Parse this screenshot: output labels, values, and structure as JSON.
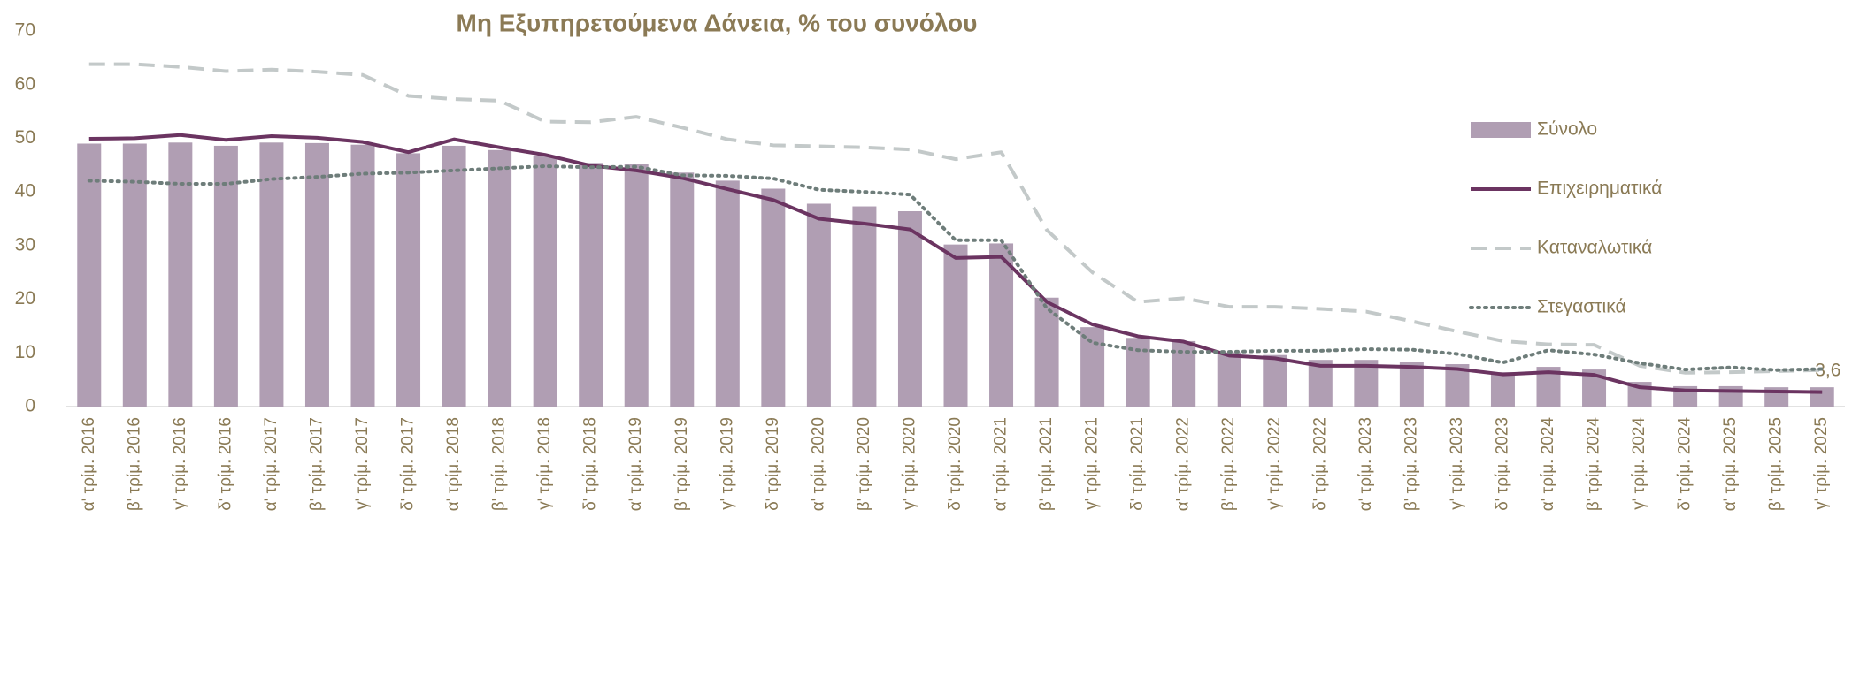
{
  "chart_data": {
    "type": "bar_line",
    "title": "Μη Εξυπηρετούμενα Δάνεια, % του συνόλου",
    "categories": [
      "α' τρίμ. 2016",
      "β' τρίμ. 2016",
      "γ' τρίμ. 2016",
      "δ' τρίμ. 2016",
      "α' τρίμ. 2017",
      "β' τρίμ. 2017",
      "γ' τρίμ. 2017",
      "δ' τρίμ. 2017",
      "α' τρίμ. 2018",
      "β' τρίμ. 2018",
      "γ' τρίμ. 2018",
      "δ' τρίμ. 2018",
      "α' τρίμ. 2019",
      "β' τρίμ. 2019",
      "γ' τρίμ. 2019",
      "δ' τρίμ. 2019",
      "α' τρίμ. 2020",
      "β' τρίμ. 2020",
      "γ' τρίμ. 2020",
      "δ' τρίμ. 2020",
      "α' τρίμ. 2021",
      "β' τρίμ. 2021",
      "γ' τρίμ. 2021",
      "δ' τρίμ. 2021",
      "α' τρίμ. 2022",
      "β' τρίμ. 2022",
      "γ' τρίμ. 2022",
      "δ' τρίμ. 2022",
      "α' τρίμ. 2023",
      "β' τρίμ. 2023",
      "γ' τρίμ. 2023",
      "δ' τρίμ. 2023",
      "α' τρίμ. 2024",
      "β' τρίμ. 2024",
      "γ' τρίμ. 2024",
      "δ' τρίμ. 2024",
      "α' τρίμ. 2025",
      "β' τρίμ. 2025",
      "γ' τρίμ. 2025"
    ],
    "series": [
      {
        "name": "Σύνολο",
        "type": "bar",
        "color": "#b09eb3",
        "values": [
          49,
          49,
          49.2,
          48.6,
          49.2,
          49.1,
          48.8,
          47.2,
          48.6,
          47.8,
          46.7,
          45.4,
          45.2,
          43.6,
          42.1,
          40.6,
          37.8,
          37.3,
          36.4,
          30.2,
          30.4,
          20.3,
          14.8,
          12.8,
          12.2,
          10.1,
          9.6,
          8.7,
          8.7,
          8.4,
          7.9,
          6.4,
          7.4,
          6.9,
          4.6,
          3.8,
          3.8,
          3.6,
          3.6
        ],
        "value_labels": [
          null,
          null,
          null,
          null,
          null,
          null,
          null,
          null,
          null,
          null,
          null,
          null,
          null,
          null,
          null,
          null,
          null,
          null,
          null,
          null,
          null,
          null,
          null,
          null,
          null,
          null,
          null,
          null,
          null,
          null,
          null,
          null,
          null,
          null,
          null,
          null,
          null,
          null,
          "3,6"
        ]
      },
      {
        "name": "Επιχειρηματικά",
        "type": "line",
        "style": "solid",
        "color": "#6b3461",
        "values": [
          49.9,
          50,
          50.6,
          49.7,
          50.4,
          50.1,
          49.3,
          47.4,
          49.8,
          48.3,
          46.9,
          44.9,
          44,
          42.6,
          40.5,
          38.5,
          35,
          34.1,
          33,
          27.7,
          27.9,
          19.5,
          15.3,
          13.1,
          12.1,
          9.5,
          9,
          7.6,
          7.6,
          7.4,
          7,
          6,
          6.4,
          5.9,
          3.6,
          3,
          2.9,
          2.8,
          2.7
        ]
      },
      {
        "name": "Καταναλωτικά",
        "type": "line",
        "style": "dashed",
        "color": "#c3c9c9",
        "values": [
          63.8,
          63.8,
          63.3,
          62.5,
          62.8,
          62.4,
          61.8,
          57.9,
          57.3,
          57,
          53.1,
          53,
          54,
          52,
          49.8,
          48.7,
          48.5,
          48.3,
          47.9,
          46.1,
          47.4,
          32.9,
          25,
          19.5,
          20.2,
          18.6,
          18.6,
          18.2,
          17.7,
          15.9,
          14,
          12.2,
          11.6,
          11.5,
          7.6,
          6.3,
          6.4,
          6.6,
          6.8
        ]
      },
      {
        "name": "Στεγαστικά",
        "type": "line",
        "style": "dotted",
        "color": "#6e7d7a",
        "values": [
          42.1,
          41.9,
          41.5,
          41.5,
          42.4,
          42.8,
          43.4,
          43.6,
          44,
          44.4,
          44.8,
          44.6,
          44.7,
          43.1,
          43,
          42.5,
          40.4,
          40,
          39.5,
          31,
          31,
          18.3,
          11.9,
          10.5,
          10.2,
          10.2,
          10.4,
          10.4,
          10.7,
          10.6,
          9.8,
          8.2,
          10.5,
          9.7,
          8.1,
          6.9,
          7.3,
          6.8,
          7
        ]
      }
    ],
    "ylim": [
      0,
      70
    ],
    "yticks": [
      0,
      10,
      20,
      30,
      40,
      50,
      60,
      70
    ],
    "grid": false,
    "legend": "right"
  }
}
